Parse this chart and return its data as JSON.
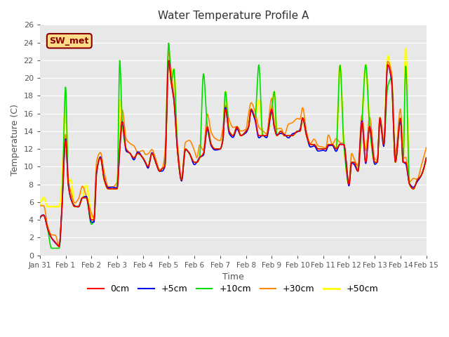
{
  "title": "Water Temperature Profile A",
  "xlabel": "Time",
  "ylabel": "Temperature (C)",
  "ylim": [
    0,
    26
  ],
  "yticks": [
    0,
    2,
    4,
    6,
    8,
    10,
    12,
    14,
    16,
    18,
    20,
    22,
    24,
    26
  ],
  "bg_color": "#e8e8e8",
  "annotation_text": "SW_met",
  "annotation_bg": "#ffdd88",
  "annotation_border": "#880000",
  "series": {
    "0cm": {
      "color": "#ff0000",
      "lw": 1.2,
      "zorder": 5
    },
    "+5cm": {
      "color": "#0000ee",
      "lw": 1.2,
      "zorder": 4
    },
    "+10cm": {
      "color": "#00dd00",
      "lw": 1.2,
      "zorder": 3
    },
    "+30cm": {
      "color": "#ff8800",
      "lw": 1.2,
      "zorder": 2
    },
    "+50cm": {
      "color": "#ffff00",
      "lw": 1.8,
      "zorder": 1
    }
  },
  "xtick_labels": [
    "Jan 31",
    "Feb 1",
    "Feb 2",
    "Feb 3",
    "Feb 4",
    "Feb 5",
    "Feb 6",
    "Feb 7",
    "Feb 8",
    "Feb 9",
    "Feb 10",
    "Feb 11",
    "Feb 12",
    "Feb 13",
    "Feb 14",
    "Feb 15"
  ],
  "xtick_positions": [
    0,
    1,
    2,
    3,
    4,
    5,
    6,
    7,
    8,
    9,
    10,
    11,
    12,
    13,
    14,
    15
  ]
}
